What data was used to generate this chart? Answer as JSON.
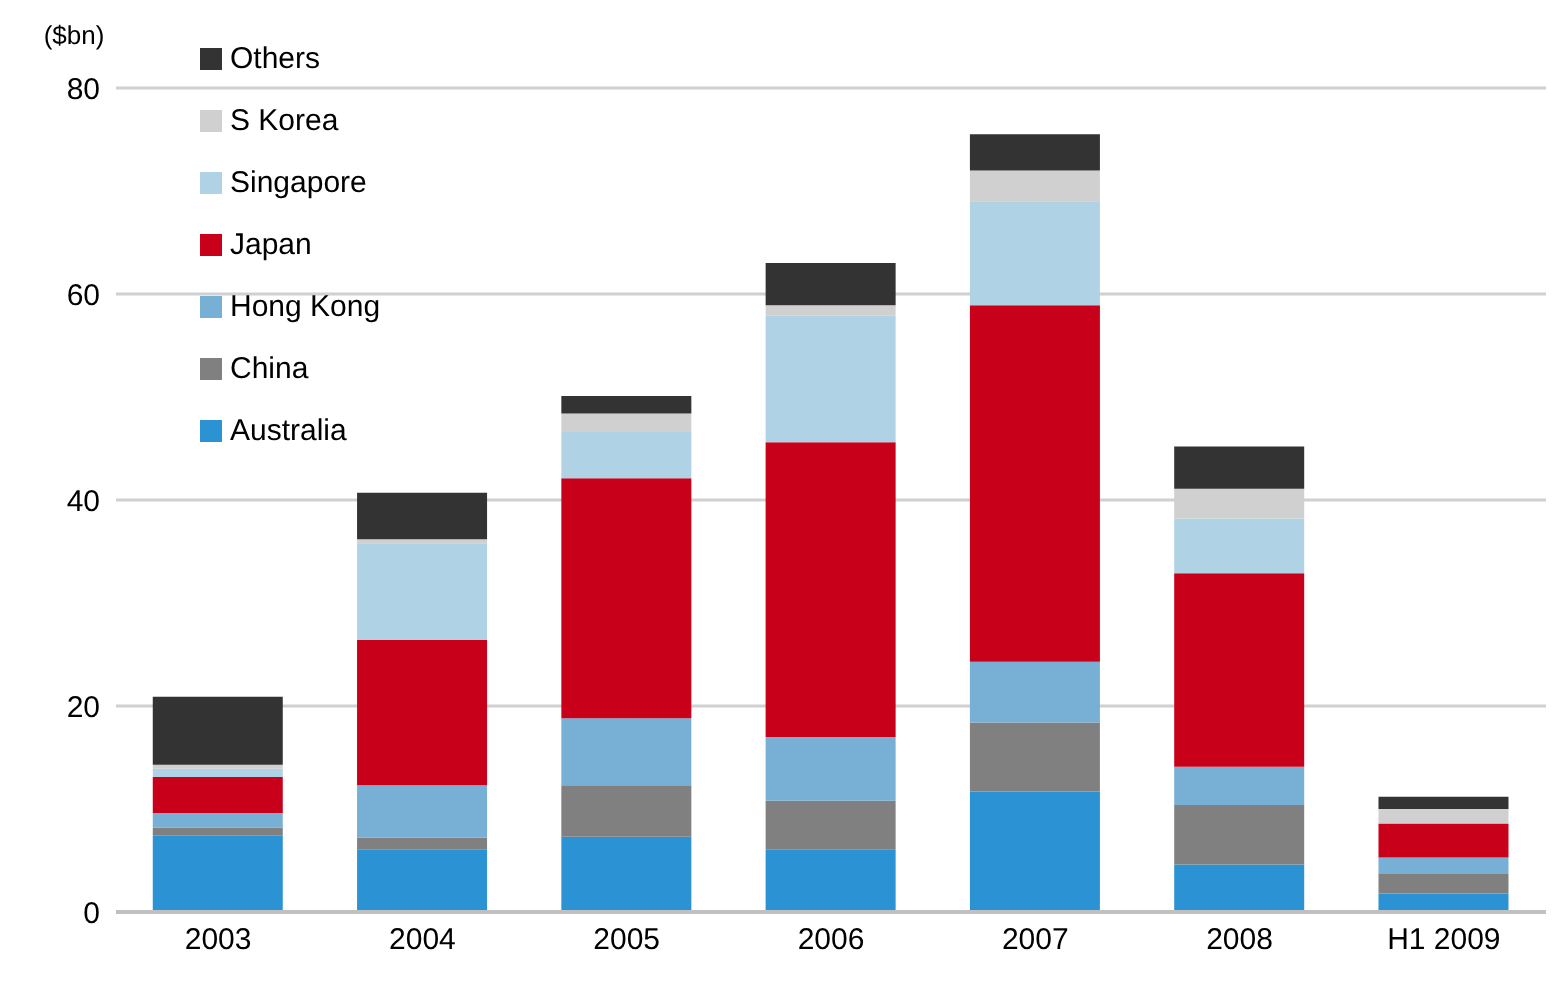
{
  "chart_data": {
    "type": "bar",
    "stacked": true,
    "ylabel": "($bn)",
    "categories": [
      "2003",
      "2004",
      "2005",
      "2006",
      "2007",
      "2008",
      "H1 2009"
    ],
    "series": [
      {
        "name": "Australia",
        "color": "#2b93d3",
        "values": [
          7.4,
          6.1,
          7.3,
          6.1,
          11.7,
          4.6,
          1.8
        ]
      },
      {
        "name": "China",
        "color": "#808080",
        "values": [
          0.8,
          1.1,
          5.0,
          4.7,
          6.7,
          5.8,
          1.9
        ]
      },
      {
        "name": "Hong Kong",
        "color": "#78afd4",
        "values": [
          1.4,
          5.1,
          6.5,
          6.2,
          5.9,
          3.7,
          1.6
        ]
      },
      {
        "name": "Japan",
        "color": "#c8001a",
        "values": [
          3.5,
          14.1,
          23.3,
          28.6,
          34.6,
          18.8,
          3.3
        ]
      },
      {
        "name": "Singapore",
        "color": "#afd2e4",
        "values": [
          0.8,
          9.4,
          4.5,
          12.3,
          10.1,
          5.3,
          0
        ]
      },
      {
        "name": "S Korea",
        "color": "#d0d0d0",
        "values": [
          0.4,
          0.4,
          1.8,
          1.0,
          3.0,
          2.9,
          1.4
        ]
      },
      {
        "name": "Others",
        "color": "#333333",
        "values": [
          6.6,
          4.5,
          1.7,
          4.1,
          3.5,
          4.1,
          1.2
        ]
      }
    ],
    "ylim": [
      0,
      80
    ],
    "yticks": [
      0,
      20,
      40,
      60,
      80
    ],
    "grid": "y",
    "legend": "top left"
  }
}
